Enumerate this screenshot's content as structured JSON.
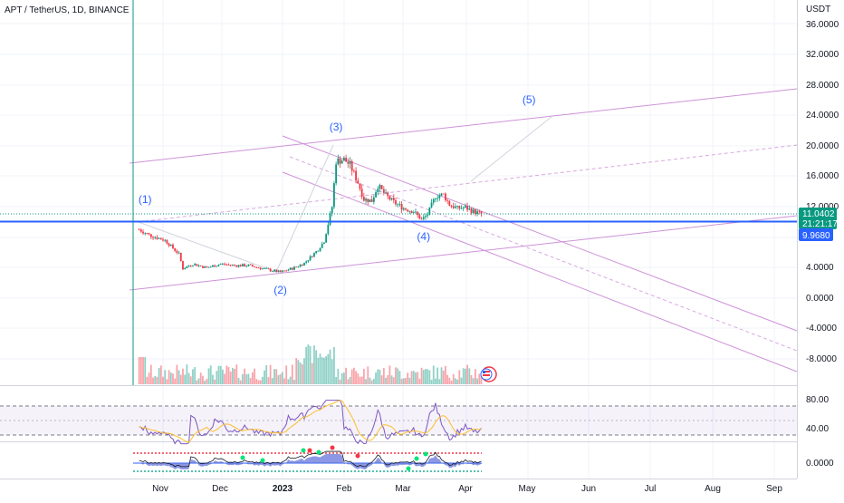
{
  "header": {
    "symbol_title": "APT / TetherUS, 1D, BINANCE",
    "currency": "USDT"
  },
  "price_axis": {
    "ticks": [
      "36.0000",
      "32.0000",
      "28.0000",
      "24.0000",
      "20.0000",
      "16.0000",
      "12.0000",
      "4.0000",
      "0.0000",
      "-4.0000",
      "-8.0000"
    ],
    "last_price": "11.0402",
    "countdown": "21:21:17",
    "level_price": "9.9680",
    "colors": {
      "last_price_bg": "#089981",
      "level_bg": "#2962ff"
    }
  },
  "rsi_axis": {
    "ticks": [
      "80.00",
      "40.00"
    ]
  },
  "osc_axis": {
    "ticks": [
      "0.0000"
    ]
  },
  "time_axis": {
    "ticks": [
      {
        "label": "Nov",
        "bold": false
      },
      {
        "label": "Dec",
        "bold": false
      },
      {
        "label": "2023",
        "bold": true
      },
      {
        "label": "Feb",
        "bold": false
      },
      {
        "label": "Mar",
        "bold": false
      },
      {
        "label": "Apr",
        "bold": false
      },
      {
        "label": "May",
        "bold": false
      },
      {
        "label": "Jun",
        "bold": false
      },
      {
        "label": "Jul",
        "bold": false
      },
      {
        "label": "Aug",
        "bold": false
      },
      {
        "label": "Sep",
        "bold": false
      }
    ]
  },
  "chart_data": {
    "type": "candlestick",
    "symbol": "APT / TetherUS",
    "interval": "1D",
    "exchange": "BINANCE",
    "ylim": [
      -10,
      38
    ],
    "x_range": [
      "2022-10-19",
      "2023-09-30"
    ],
    "closes": [
      {
        "date": "2022-10-19",
        "close": 9.0
      },
      {
        "date": "2022-10-25",
        "close": 8.2
      },
      {
        "date": "2022-11-01",
        "close": 7.6
      },
      {
        "date": "2022-11-08",
        "close": 5.8
      },
      {
        "date": "2022-11-10",
        "close": 3.9
      },
      {
        "date": "2022-11-15",
        "close": 4.5
      },
      {
        "date": "2022-11-22",
        "close": 4.0
      },
      {
        "date": "2022-11-29",
        "close": 4.5
      },
      {
        "date": "2022-12-06",
        "close": 4.3
      },
      {
        "date": "2022-12-13",
        "close": 4.3
      },
      {
        "date": "2022-12-20",
        "close": 3.9
      },
      {
        "date": "2022-12-29",
        "close": 3.4
      },
      {
        "date": "2023-01-05",
        "close": 4.0
      },
      {
        "date": "2023-01-10",
        "close": 4.6
      },
      {
        "date": "2023-01-17",
        "close": 6.4
      },
      {
        "date": "2023-01-20",
        "close": 7.5
      },
      {
        "date": "2023-01-24",
        "close": 12.0
      },
      {
        "date": "2023-01-26",
        "close": 18.0
      },
      {
        "date": "2023-01-30",
        "close": 18.2
      },
      {
        "date": "2023-02-02",
        "close": 17.5
      },
      {
        "date": "2023-02-06",
        "close": 15.2
      },
      {
        "date": "2023-02-09",
        "close": 13.0
      },
      {
        "date": "2023-02-13",
        "close": 12.8
      },
      {
        "date": "2023-02-16",
        "close": 14.8
      },
      {
        "date": "2023-02-20",
        "close": 13.5
      },
      {
        "date": "2023-02-24",
        "close": 12.6
      },
      {
        "date": "2023-03-01",
        "close": 11.8
      },
      {
        "date": "2023-03-06",
        "close": 11.4
      },
      {
        "date": "2023-03-10",
        "close": 10.3
      },
      {
        "date": "2023-03-13",
        "close": 11.0
      },
      {
        "date": "2023-03-17",
        "close": 13.4
      },
      {
        "date": "2023-03-21",
        "close": 13.6
      },
      {
        "date": "2023-03-24",
        "close": 12.3
      },
      {
        "date": "2023-03-28",
        "close": 11.8
      },
      {
        "date": "2023-04-01",
        "close": 11.9
      },
      {
        "date": "2023-04-05",
        "close": 11.4
      },
      {
        "date": "2023-04-09",
        "close": 11.04
      }
    ],
    "wave_labels": [
      {
        "label": "(1)",
        "date": "2022-10-22",
        "price": 12.5
      },
      {
        "label": "(2)",
        "date": "2022-12-29",
        "price": 0.6
      },
      {
        "label": "(3)",
        "date": "2023-01-26",
        "price": 22.0
      },
      {
        "label": "(4)",
        "date": "2023-03-11",
        "price": 7.6
      },
      {
        "label": "(5)",
        "date": "2023-05-03",
        "price": 25.6
      }
    ],
    "horizontal_line": 9.968,
    "rsi": {
      "levels": [
        70,
        30
      ],
      "ylim": [
        25,
        92
      ]
    }
  }
}
